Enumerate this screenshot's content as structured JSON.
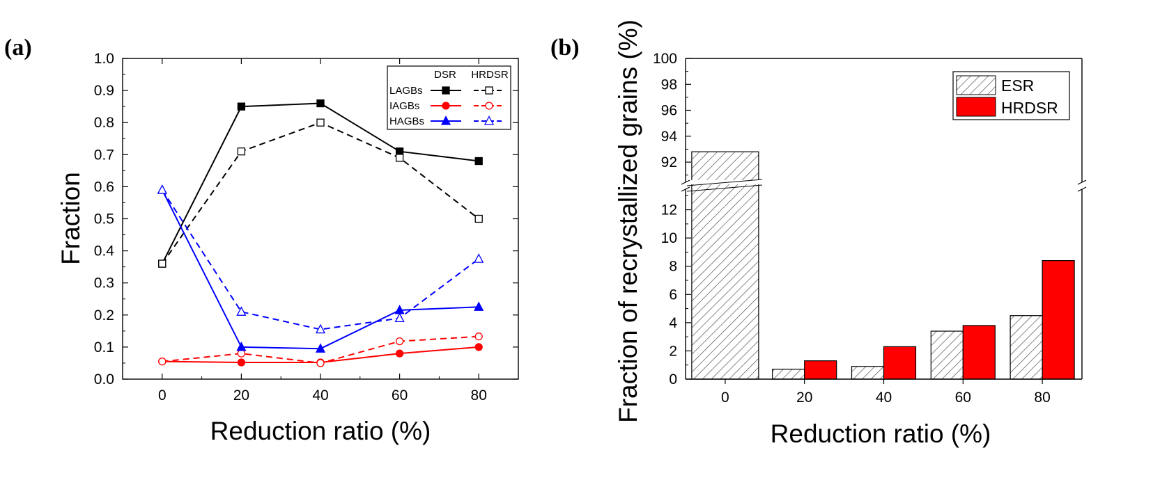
{
  "chart_data": [
    {
      "panel_label": "(a)",
      "type": "line",
      "xlabel": "Reduction ratio (%)",
      "ylabel": "Fraction",
      "x": [
        0,
        20,
        40,
        60,
        80
      ],
      "xlim": [
        -10,
        90
      ],
      "ylim": [
        0.0,
        1.0
      ],
      "xticks": [
        "0",
        "20",
        "40",
        "60",
        "80"
      ],
      "yticks": [
        "0.0",
        "0.1",
        "0.2",
        "0.3",
        "0.4",
        "0.5",
        "0.6",
        "0.7",
        "0.8",
        "0.9",
        "1.0"
      ],
      "legend": {
        "placement": "top-right",
        "col_headers": [
          "DSR",
          "HRDSR"
        ],
        "rows": [
          "LAGBs",
          "IAGBs",
          "HAGBs"
        ]
      },
      "series": [
        {
          "name": "LAGBs DSR",
          "group": "LAGBs",
          "process": "DSR",
          "color": "#000000",
          "marker": "square-filled",
          "dash": "solid",
          "values": [
            0.36,
            0.85,
            0.86,
            0.71,
            0.68
          ]
        },
        {
          "name": "LAGBs HRDSR",
          "group": "LAGBs",
          "process": "HRDSR",
          "color": "#000000",
          "marker": "square-open",
          "dash": "dashed",
          "values": [
            0.36,
            0.71,
            0.8,
            0.69,
            0.5
          ]
        },
        {
          "name": "IAGBs DSR",
          "group": "IAGBs",
          "process": "DSR",
          "color": "#ff0000",
          "marker": "circle-filled",
          "dash": "solid",
          "values": [
            0.055,
            0.052,
            0.052,
            0.08,
            0.1
          ]
        },
        {
          "name": "IAGBs HRDSR",
          "group": "IAGBs",
          "process": "HRDSR",
          "color": "#ff0000",
          "marker": "circle-open",
          "dash": "dashed",
          "values": [
            0.055,
            0.08,
            0.05,
            0.118,
            0.133
          ]
        },
        {
          "name": "HAGBs DSR",
          "group": "HAGBs",
          "process": "DSR",
          "color": "#0000ff",
          "marker": "triangle-filled",
          "dash": "solid",
          "values": [
            0.59,
            0.1,
            0.095,
            0.215,
            0.225
          ]
        },
        {
          "name": "HAGBs HRDSR",
          "group": "HAGBs",
          "process": "HRDSR",
          "color": "#0000ff",
          "marker": "triangle-open",
          "dash": "dashed",
          "values": [
            0.59,
            0.21,
            0.155,
            0.19,
            0.375
          ]
        }
      ]
    },
    {
      "panel_label": "(b)",
      "type": "bar",
      "xlabel": "Reduction ratio (%)",
      "ylabel": "Fraction of recrystallized grains (%)",
      "categories": [
        "0",
        "20",
        "40",
        "60",
        "80"
      ],
      "axis_break": {
        "lower_range": [
          0,
          14
        ],
        "upper_range": [
          90.5,
          100
        ]
      },
      "yticks_lower": [
        "0",
        "2",
        "4",
        "6",
        "8",
        "10",
        "12"
      ],
      "yticks_upper": [
        "92",
        "94",
        "96",
        "98",
        "100"
      ],
      "legend": {
        "placement": "top-right"
      },
      "series": [
        {
          "name": "ESR",
          "color": "#ffffff",
          "pattern": "hatched",
          "values": [
            92.8,
            0.7,
            0.9,
            3.4,
            4.5
          ]
        },
        {
          "name": "HRDSR",
          "color": "#ff0000",
          "pattern": "solid",
          "values": [
            null,
            1.3,
            2.3,
            3.8,
            8.4
          ]
        }
      ]
    }
  ]
}
